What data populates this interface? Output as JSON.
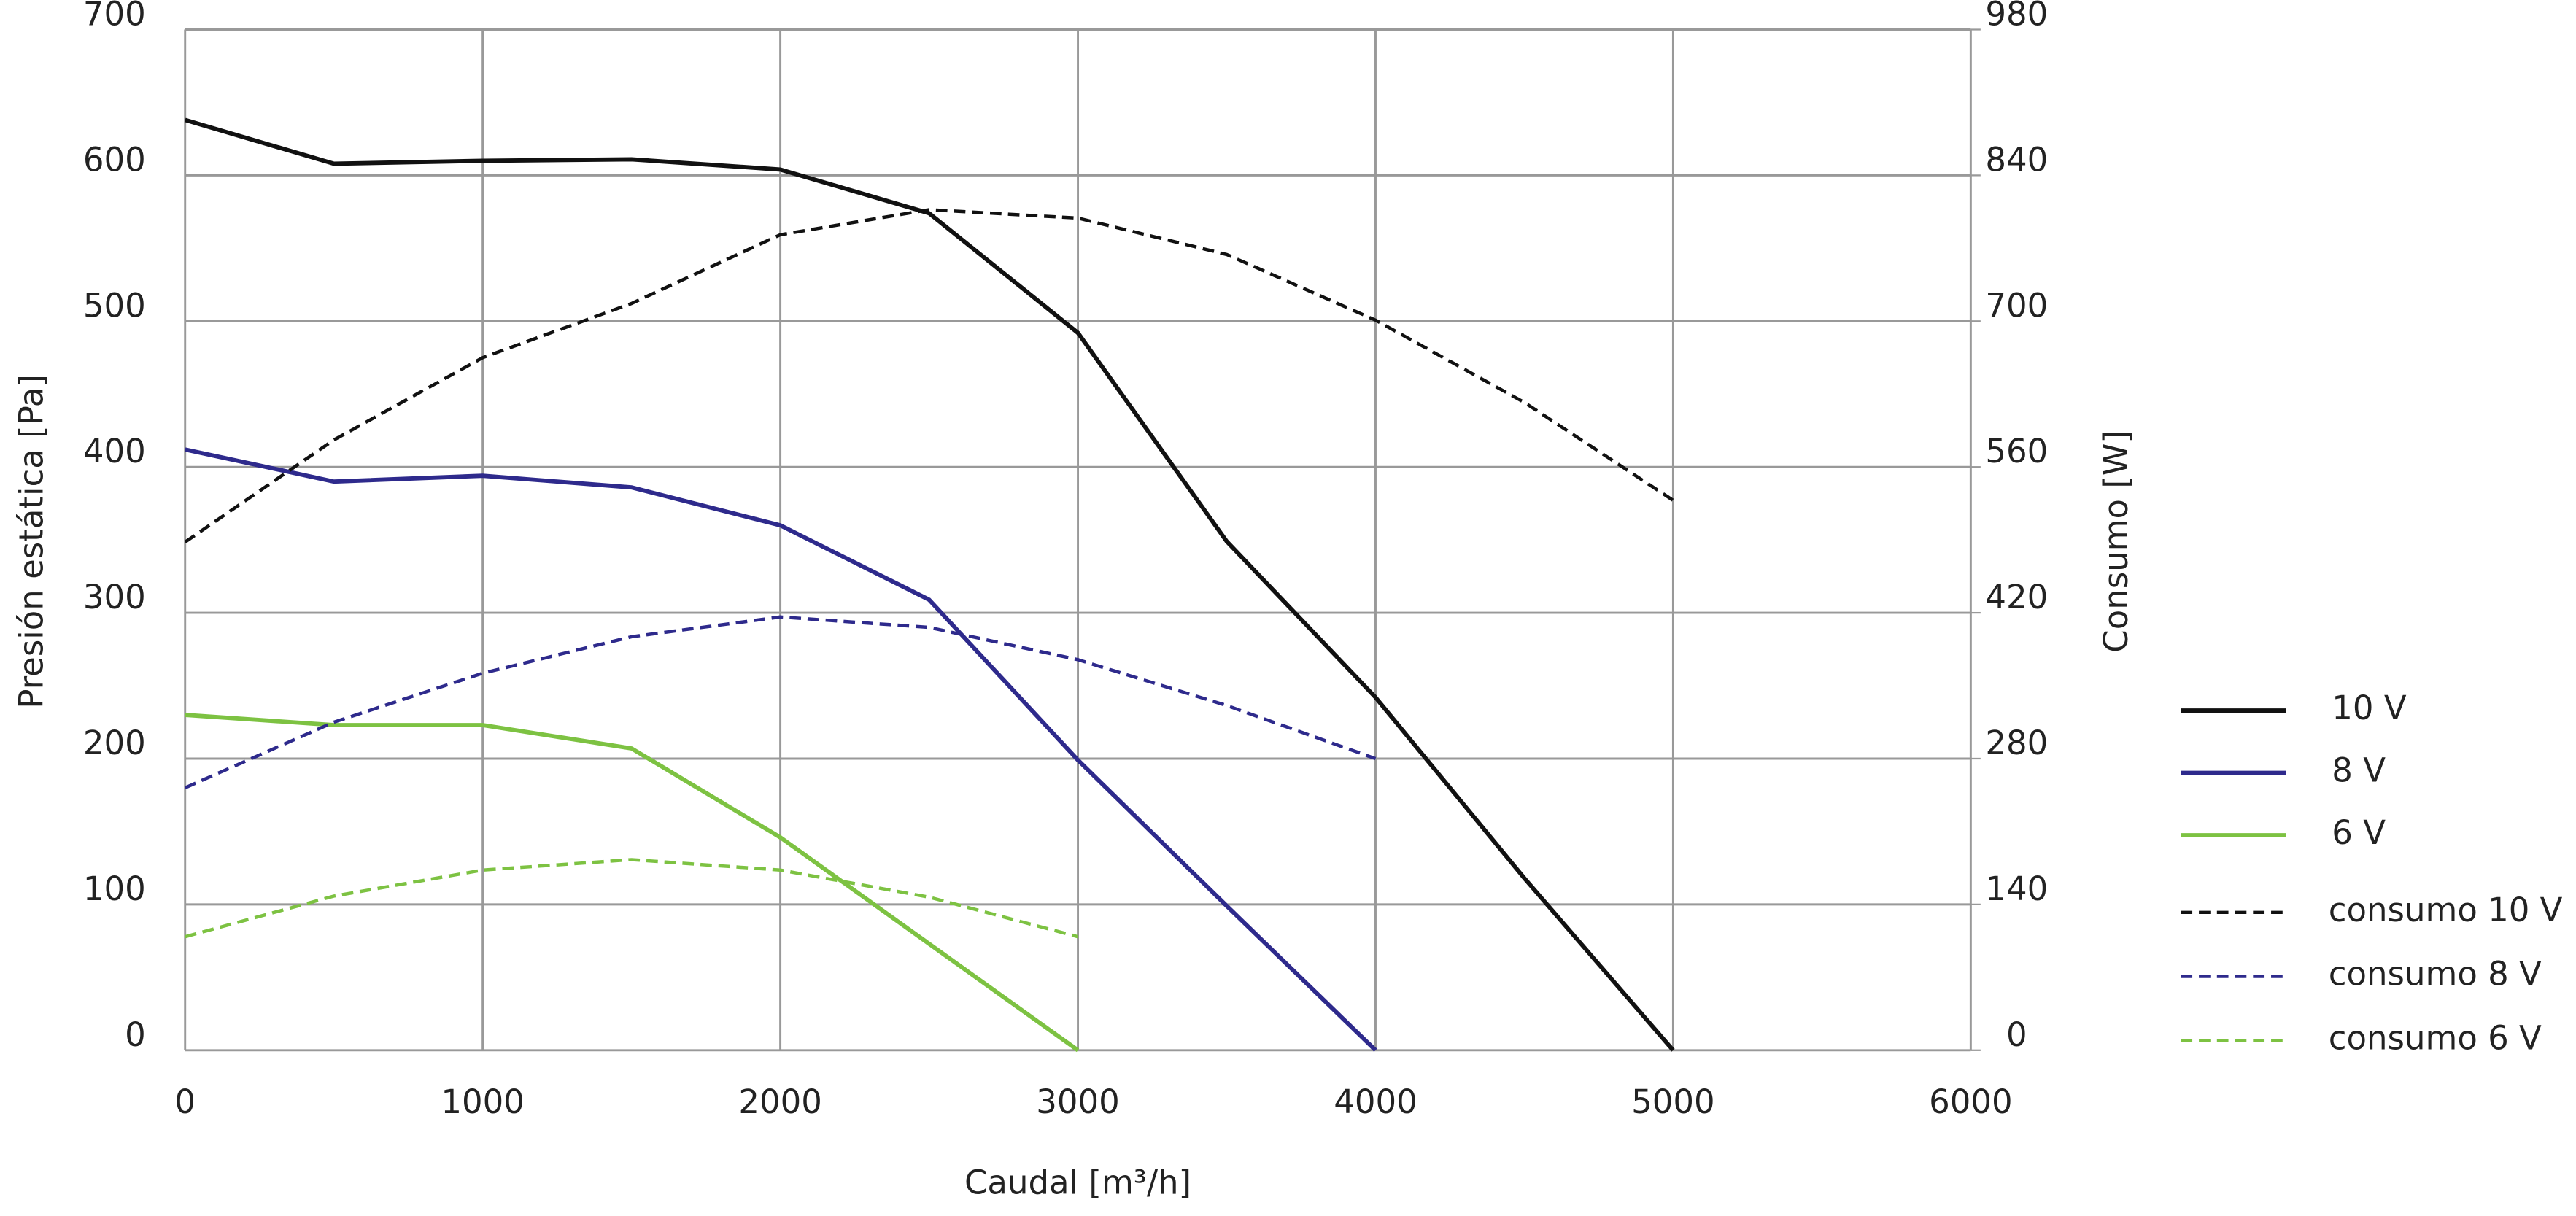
{
  "chart_data": {
    "type": "line",
    "x_label": "Caudal [m³/h]",
    "y_label": "Presión estática [Pa]",
    "y2_label": "Consumo [W]",
    "x": [
      0,
      500,
      1000,
      1500,
      2000,
      2500,
      3000,
      3500,
      4000,
      4500,
      5000
    ],
    "xlim": [
      0,
      6000
    ],
    "xticks": [
      0,
      1000,
      2000,
      3000,
      4000,
      5000,
      6000
    ],
    "ylim": [
      0,
      700
    ],
    "yticks": [
      0,
      100,
      200,
      300,
      400,
      500,
      600,
      700
    ],
    "y2lim": [
      0,
      980
    ],
    "y2ticks": [
      0,
      140,
      280,
      420,
      560,
      700,
      840,
      980
    ],
    "grid": true,
    "legend": "right",
    "series": [
      {
        "name": "10 V",
        "color": "#111111",
        "dash": false,
        "values": [
          638,
          608,
          610,
          611,
          604,
          574,
          492,
          349,
          242,
          118,
          0
        ]
      },
      {
        "name": "8 V",
        "color": "#2e2a8c",
        "dash": false,
        "values": [
          412,
          390,
          394,
          386,
          360,
          309,
          199,
          99,
          0,
          null,
          null
        ]
      },
      {
        "name": "6 V",
        "color": "#7dc242",
        "dash": false,
        "values": [
          230,
          223,
          223,
          207,
          146,
          73,
          0,
          null,
          null,
          null,
          null
        ]
      },
      {
        "name": "consumo 10 V",
        "color": "#111111",
        "dash": true,
        "axis": "y2",
        "values": [
          488,
          586,
          665,
          717,
          783,
          807,
          799,
          764,
          701,
          622,
          528
        ]
      },
      {
        "name": "consumo 8 V",
        "color": "#2e2a8c",
        "dash": true,
        "axis": "y2",
        "values": [
          252,
          315,
          362,
          397,
          416,
          406,
          375,
          331,
          280,
          null,
          null
        ]
      },
      {
        "name": "consumo 6 V",
        "color": "#7dc242",
        "dash": true,
        "axis": "y2",
        "values": [
          109,
          148,
          173,
          183,
          173,
          147,
          109,
          null,
          null,
          null,
          null
        ]
      }
    ]
  }
}
